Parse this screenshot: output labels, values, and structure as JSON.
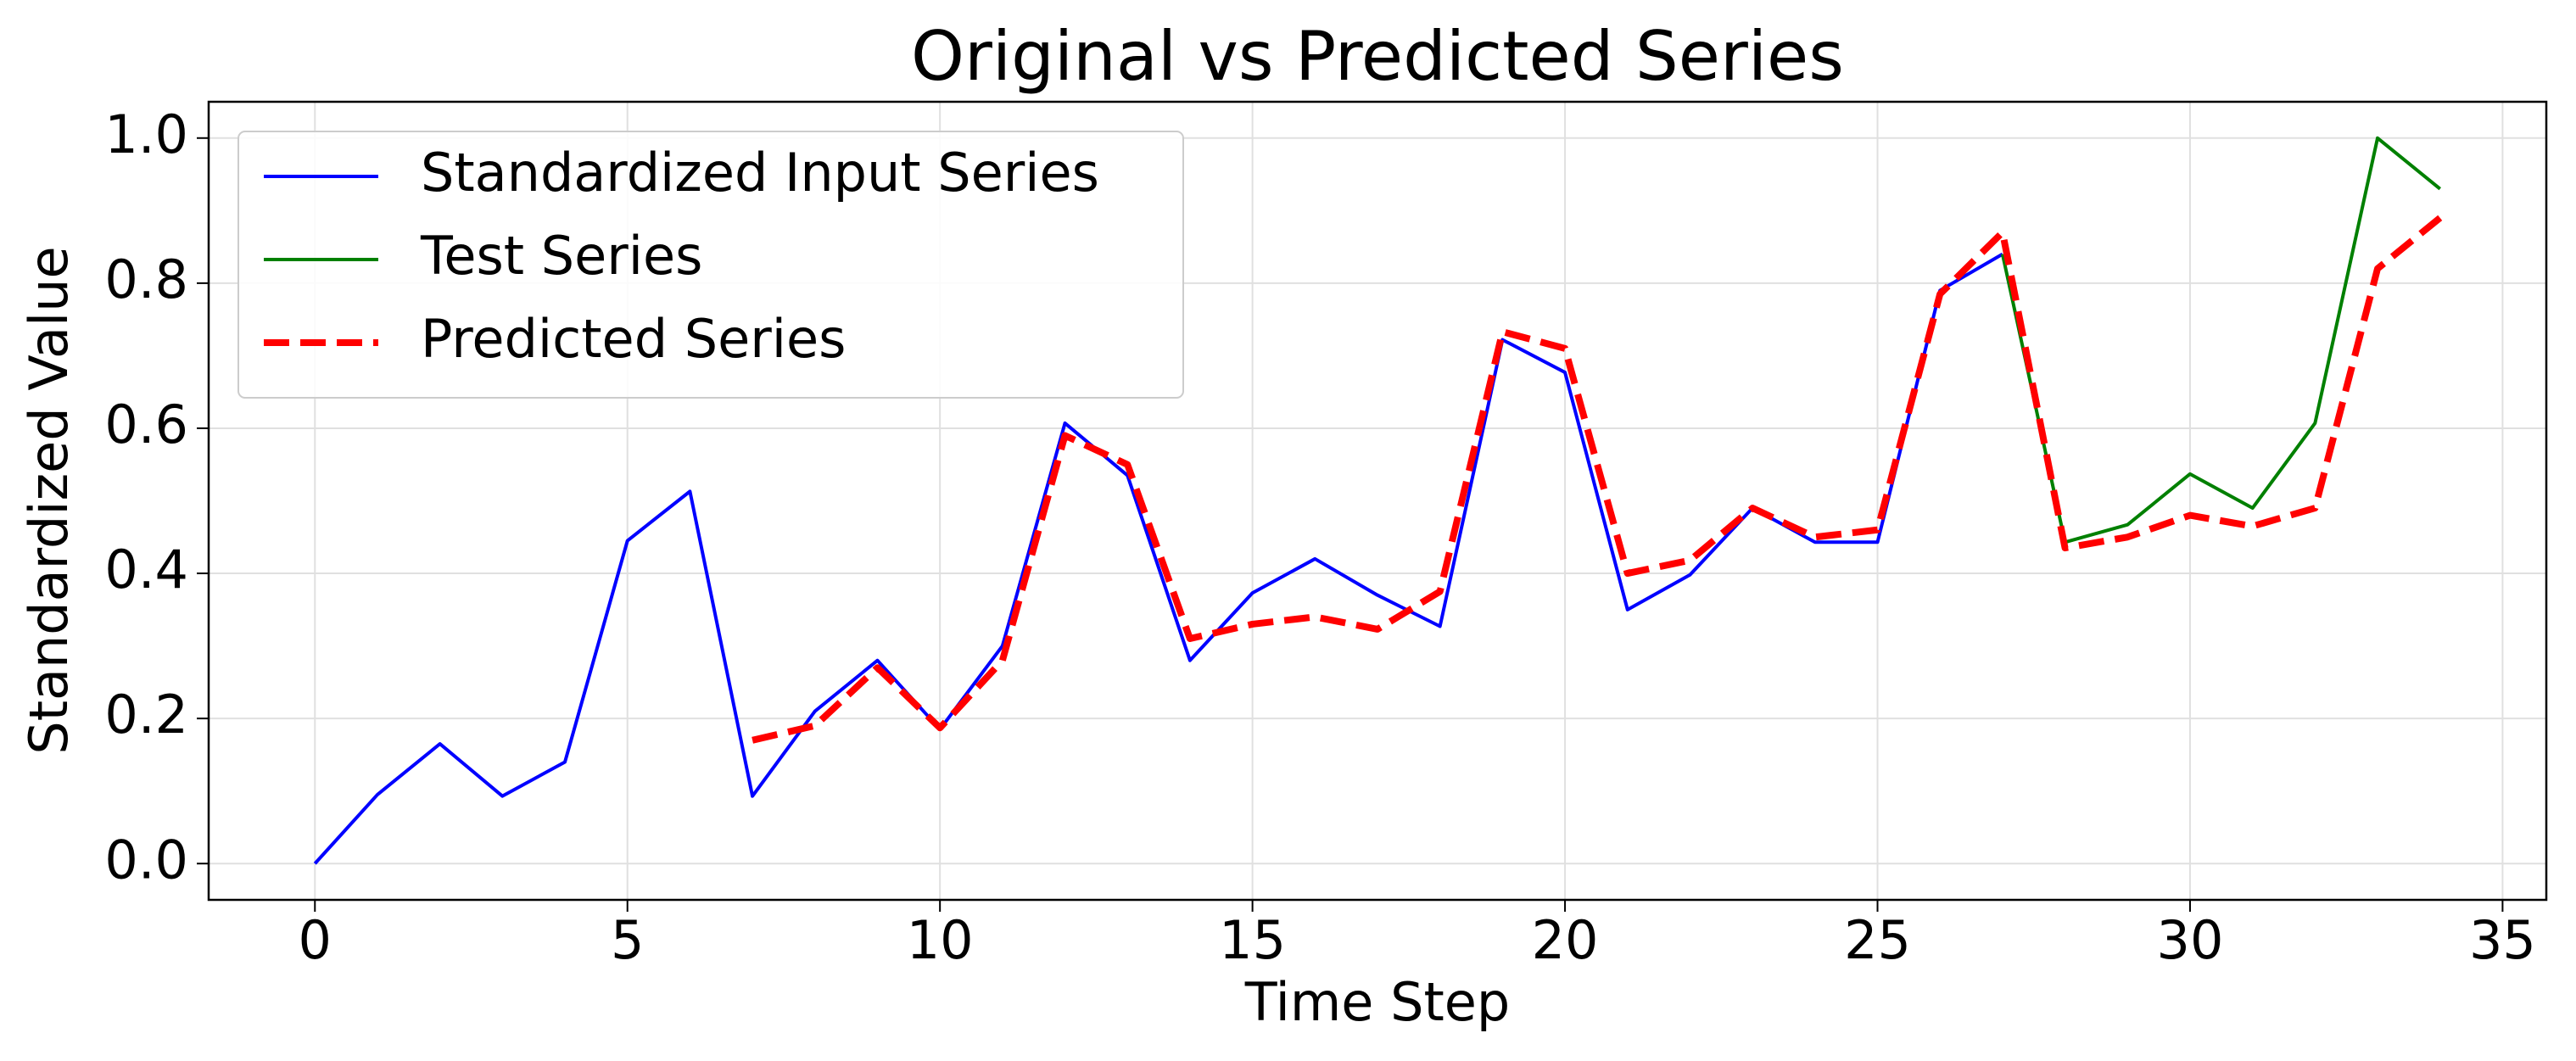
{
  "chart_data": {
    "type": "line",
    "title": "Original vs Predicted Series",
    "xlabel": "Time Step",
    "ylabel": "Standardized Value",
    "xlim": [
      -1.7,
      35.7
    ],
    "ylim": [
      -0.05,
      1.05
    ],
    "xticks": [
      0,
      5,
      10,
      15,
      20,
      25,
      30,
      35
    ],
    "yticks": [
      {
        "value": 0,
        "label": "0.0"
      },
      0.2,
      0.4,
      0.6,
      0.8,
      {
        "value": 1,
        "label": "1.0"
      }
    ],
    "grid": true,
    "legend": "upper left",
    "series": [
      {
        "name": "Standardized Input Series",
        "color": "#0000ff",
        "style": "solid",
        "x": [
          0,
          1,
          2,
          3,
          4,
          5,
          6,
          7,
          8,
          9,
          10,
          11,
          12,
          13,
          14,
          15,
          16,
          17,
          18,
          19,
          20,
          21,
          22,
          23,
          24,
          25,
          26,
          27
        ],
        "values": [
          0,
          0.095,
          0.165,
          0.093,
          0.14,
          0.445,
          0.513,
          0.093,
          0.21,
          0.28,
          0.185,
          0.3,
          0.607,
          0.535,
          0.28,
          0.373,
          0.42,
          0.37,
          0.327,
          0.722,
          0.677,
          0.35,
          0.398,
          0.49,
          0.443,
          0.443,
          0.79,
          0.84
        ]
      },
      {
        "name": "Test Series",
        "color": "#008000",
        "style": "solid",
        "x": [
          27,
          28,
          29,
          30,
          31,
          32,
          33,
          34
        ],
        "values": [
          0.84,
          0.443,
          0.467,
          0.537,
          0.49,
          0.607,
          1.0,
          0.93
        ]
      },
      {
        "name": "Predicted Series",
        "color": "#ff0000",
        "style": "dashed",
        "x": [
          7,
          8,
          9,
          10,
          11,
          12,
          13,
          14,
          15,
          16,
          17,
          18,
          19,
          20,
          21,
          22,
          23,
          24,
          25,
          26,
          27,
          28,
          29,
          30,
          31,
          32,
          33,
          34
        ],
        "values": [
          0.17,
          0.19,
          0.27,
          0.187,
          0.28,
          0.59,
          0.55,
          0.31,
          0.33,
          0.34,
          0.323,
          0.375,
          0.733,
          0.71,
          0.4,
          0.418,
          0.49,
          0.45,
          0.46,
          0.785,
          0.87,
          0.435,
          0.45,
          0.48,
          0.465,
          0.49,
          0.82,
          0.89
        ]
      }
    ]
  }
}
